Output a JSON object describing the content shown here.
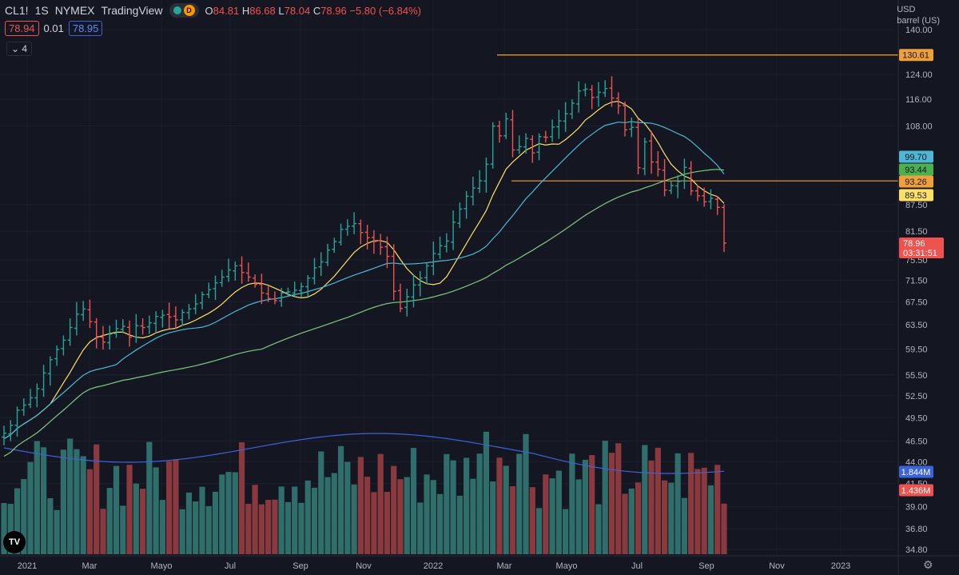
{
  "header": {
    "symbol": "CL1!",
    "interval": "1S",
    "exchange": "NYMEX",
    "source": "TradingView",
    "d_badge": "D",
    "open_label": "O",
    "open": "84.81",
    "high_label": "H",
    "high": "86.68",
    "low_label": "L",
    "low": "78.04",
    "close_label": "C",
    "close": "78.96",
    "change": "−5.80 (−6.84%)",
    "bid": "78.94",
    "spread": "0.01",
    "ask": "78.95",
    "indicators_count": "4"
  },
  "top_right": {
    "currency": "USD",
    "unit": "barrel (US)"
  },
  "colors": {
    "background": "#141722",
    "up": "#26a69a",
    "down": "#ef5350",
    "ma_yellow": "#ffe066",
    "ma_blue": "#4fb6d6",
    "ma_green": "#7dc97a",
    "level": "#f0a03b",
    "volume_ma": "#3d63d9"
  },
  "chart_data": {
    "type": "ohlc_bar",
    "x_tick_labels": [
      "2021",
      "Mar",
      "Mayo",
      "Jul",
      "Sep",
      "Nov",
      "2022",
      "Mar",
      "Mayo",
      "Jul",
      "Sep",
      "Nov",
      "2023"
    ],
    "y_tick_labels": [
      "140.00",
      "124.00",
      "116.00",
      "108.00",
      "87.50",
      "81.50",
      "75.50",
      "71.50",
      "67.50",
      "63.50",
      "59.50",
      "55.50",
      "52.50",
      "49.50",
      "46.50",
      "44.00",
      "41.50",
      "39.00",
      "36.80",
      "34.80"
    ],
    "y_scale": "log",
    "price_series": {
      "close": [
        47.5,
        48.5,
        50.5,
        51.2,
        52.2,
        53.5,
        55.8,
        57.8,
        59.4,
        60.9,
        63.0,
        65.3,
        66.2,
        64.0,
        61.5,
        60.6,
        61.9,
        62.8,
        63.2,
        61.4,
        63.3,
        63.0,
        63.8,
        64.9,
        65.1,
        64.8,
        64.3,
        65.6,
        66.2,
        67.1,
        68.8,
        69.7,
        71.0,
        72.1,
        73.5,
        74.3,
        73.0,
        72.1,
        70.7,
        69.1,
        68.1,
        67.7,
        69.1,
        69.3,
        69.6,
        70.3,
        71.9,
        73.9,
        75.1,
        77.5,
        79.3,
        81.9,
        82.6,
        83.2,
        81.2,
        80.1,
        79.3,
        78.1,
        76.2,
        69.4,
        66.3,
        68.4,
        70.6,
        71.9,
        74.3,
        76.8,
        78.4,
        79.4,
        83.5,
        86.5,
        89.5,
        91.5,
        93.3,
        97.5,
        108.0,
        105.2,
        110.1,
        101.3,
        102.2,
        104.5,
        100.5,
        105.0,
        104.8,
        107.7,
        109.5,
        111.6,
        114.8,
        118.6,
        119.2,
        116.6,
        118.2,
        119.4,
        116.4,
        114.0,
        106.9,
        107.6,
        96.6,
        103.5,
        98.1,
        96.2,
        91.0,
        92.1,
        93.1,
        96.7,
        90.8,
        89.6,
        88.2,
        89.0,
        86.9,
        78.96
      ],
      "ma_yellow": {
        "label": "89.53",
        "last": 89.53
      },
      "ma_blue": {
        "label": "99.70",
        "last": 99.7
      },
      "ma_green": {
        "label": "93.44",
        "last": 93.44
      }
    },
    "levels": [
      {
        "value": 130.61,
        "label": "130.61"
      },
      {
        "value": 93.26,
        "label": "93.26"
      }
    ],
    "last_price": {
      "value": 78.96,
      "label": "78.96",
      "countdown": "03:31:51"
    },
    "volume": {
      "scale_labels": {
        "ma": "1.844M",
        "last": "1.436M"
      },
      "ma_label_value": "1.844M",
      "last_label_value": "1.436M"
    }
  }
}
